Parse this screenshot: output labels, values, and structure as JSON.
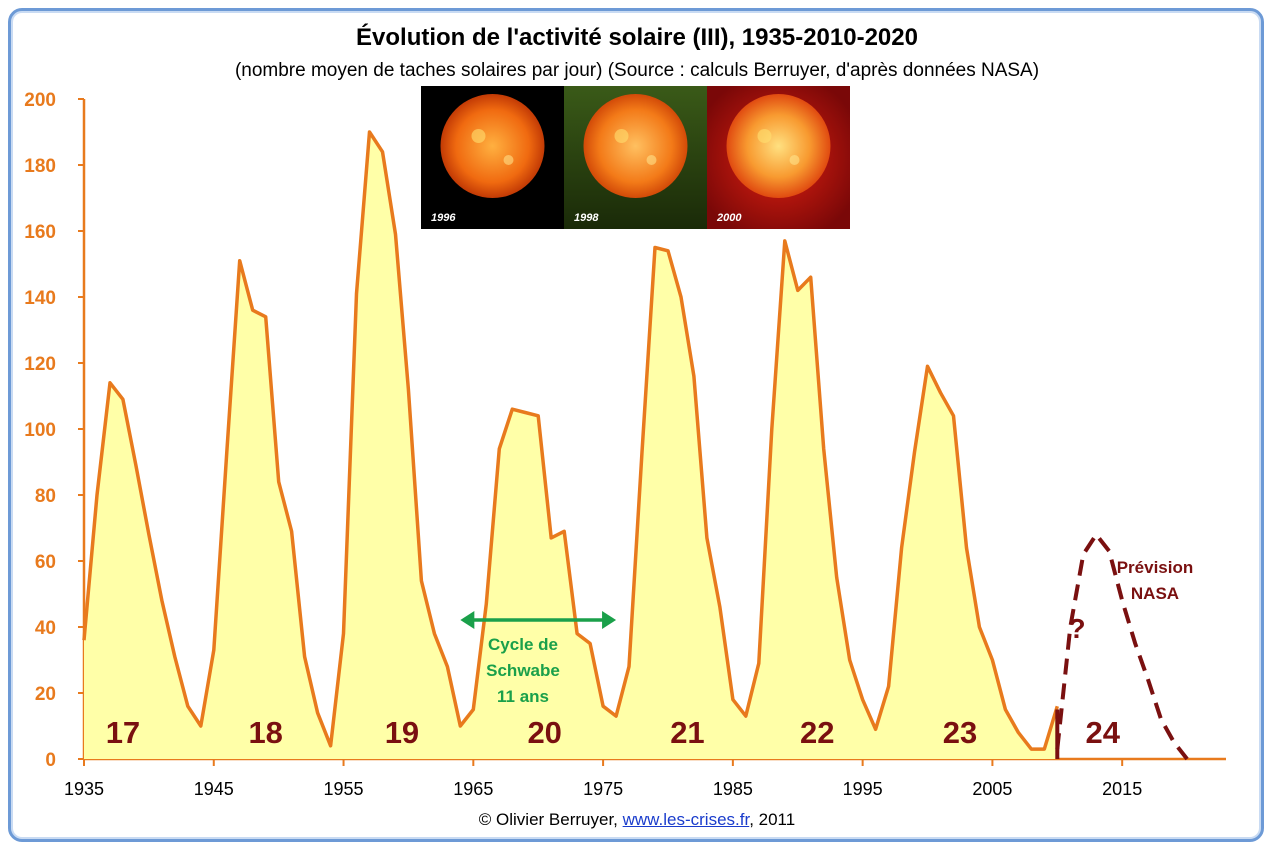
{
  "chart_data": {
    "type": "area",
    "title": "Évolution de l'activité solaire (III), 1935-2010-2020",
    "subtitle": "(nombre moyen de taches solaires par jour) (Source : calculs Berruyer, d'après données NASA)",
    "xlim": [
      1935,
      2023
    ],
    "ylim": [
      0,
      200
    ],
    "grid": false,
    "x_ticks": [
      "1935",
      "1945",
      "1955",
      "1965",
      "1975",
      "1985",
      "1995",
      "2005",
      "2015"
    ],
    "y_ticks": [
      "0",
      "20",
      "40",
      "60",
      "80",
      "100",
      "120",
      "140",
      "160",
      "180",
      "200"
    ],
    "series": [
      {
        "x": [
          1935,
          1936,
          1937,
          1938,
          1939,
          1940,
          1941,
          1942,
          1943,
          1944,
          1945,
          1946,
          1947,
          1948,
          1949,
          1950,
          1951,
          1952,
          1953,
          1954,
          1955,
          1956,
          1957,
          1958,
          1959,
          1960,
          1961,
          1962,
          1963,
          1964,
          1965,
          1966,
          1967,
          1968,
          1969,
          1970,
          1971,
          1972,
          1973,
          1974,
          1975,
          1976,
          1977,
          1978,
          1979,
          1980,
          1981,
          1982,
          1983,
          1984,
          1985,
          1986,
          1987,
          1988,
          1989,
          1990,
          1991,
          1992,
          1993,
          1994,
          1995,
          1996,
          1997,
          1998,
          1999,
          2000,
          2001,
          2002,
          2003,
          2004,
          2005,
          2006,
          2007,
          2008,
          2009,
          2010
        ],
        "values": [
          36,
          80,
          114,
          109,
          89,
          68,
          48,
          31,
          16,
          10,
          33,
          93,
          151,
          136,
          134,
          84,
          69,
          31,
          14,
          4,
          38,
          141,
          190,
          184,
          159,
          112,
          54,
          38,
          28,
          10,
          15,
          47,
          94,
          106,
          105,
          104,
          67,
          69,
          38,
          35,
          16,
          13,
          28,
          93,
          155,
          154,
          140,
          116,
          67,
          46,
          18,
          13,
          29,
          100,
          157,
          142,
          146,
          94,
          55,
          30,
          18,
          9,
          22,
          64,
          93,
          119,
          111,
          104,
          64,
          40,
          30,
          15,
          8,
          3,
          3,
          16
        ],
        "color": "#e87a1d",
        "fill": "#ffffa8"
      }
    ],
    "forecast": {
      "x": [
        2010,
        2011,
        2012,
        2013,
        2014,
        2015,
        2016,
        2017,
        2018,
        2019,
        2020
      ],
      "values": [
        3,
        40,
        62,
        68,
        63,
        48,
        35,
        24,
        12,
        5,
        0
      ],
      "color": "#7a1010",
      "style": "dashed"
    },
    "cycles": [
      {
        "label": "17",
        "x": 1938
      },
      {
        "label": "18",
        "x": 1949
      },
      {
        "label": "19",
        "x": 1959.5
      },
      {
        "label": "20",
        "x": 1970.5
      },
      {
        "label": "21",
        "x": 1981.5
      },
      {
        "label": "22",
        "x": 1991.5
      },
      {
        "label": "23",
        "x": 2002.5
      },
      {
        "label": "24",
        "x": 2013.5
      }
    ],
    "annotations": {
      "schwabe_lines": [
        "Cycle de",
        "Schwabe",
        "11 ans"
      ],
      "schwabe_span": [
        1964,
        1976
      ],
      "forecast_lines": [
        "Prévision",
        "NASA"
      ],
      "question": "?"
    },
    "photos": [
      "1996",
      "1998",
      "2000"
    ]
  },
  "footer": {
    "prefix": "© Olivier Berruyer, ",
    "link": "www.les-crises.fr",
    "suffix": ",  2011"
  },
  "colors": {
    "frame": "#6d9ad6",
    "axis": "#e87a1d",
    "series_fill": "#ffffa8",
    "cycle_label": "#7a1010",
    "schwabe": "#1aa04a"
  }
}
